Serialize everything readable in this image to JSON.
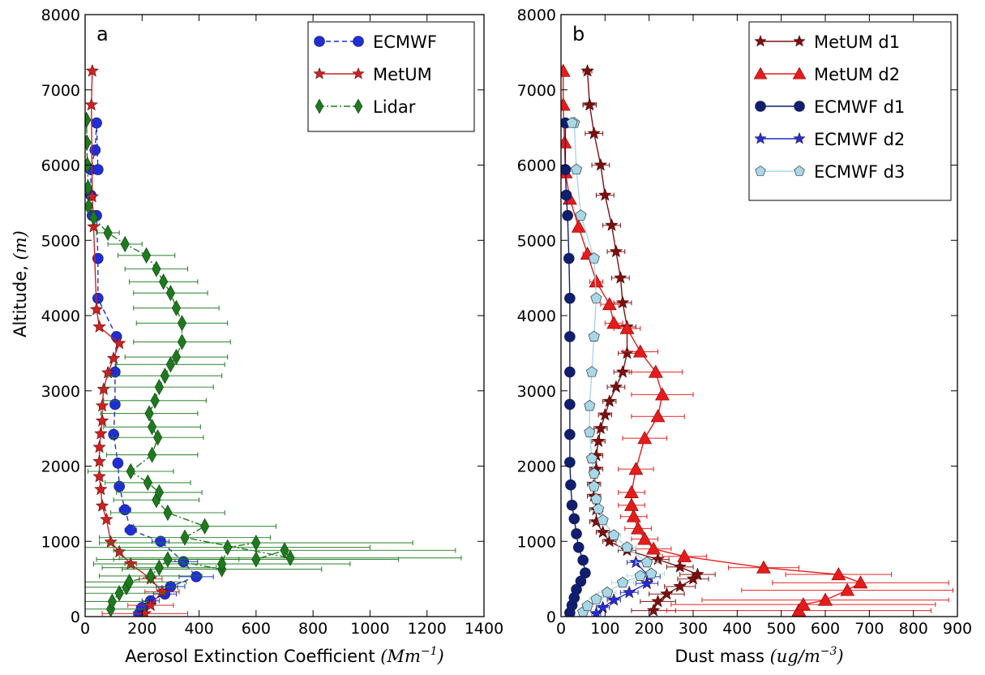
{
  "ylabel_text": "Altitude, ",
  "ylabel_unit": "(m)",
  "chart_data": [
    {
      "type": "line",
      "panel_label": "a",
      "xlabel_text": "Aerosol Extinction Coefficient ",
      "xlabel_unit": "(Mm",
      "xlabel_exp": "−1",
      "xlabel_close": ")",
      "xlim": [
        0,
        1400
      ],
      "ylim": [
        0,
        8000
      ],
      "xticks": [
        "0",
        "200",
        "400",
        "600",
        "800",
        "1000",
        "1200",
        "1400"
      ],
      "yticks": [
        "0",
        "1000",
        "2000",
        "3000",
        "4000",
        "5000",
        "6000",
        "7000",
        "8000"
      ],
      "grid": false,
      "legend": "top-right",
      "series": [
        {
          "name": "ECMWF",
          "color": "#1f2fd6",
          "marker": "circle",
          "linestyle": "dashed",
          "x": [
            190,
            200,
            230,
            280,
            300,
            390,
            345,
            265,
            160,
            140,
            120,
            115,
            100,
            105,
            105,
            110,
            45,
            45,
            40
          ],
          "y": [
            40,
            120,
            210,
            300,
            400,
            530,
            730,
            1000,
            1150,
            1420,
            1730,
            2040,
            2420,
            2820,
            3250,
            3720,
            4230,
            4760,
            5330
          ],
          "xerr": [
            20,
            20,
            30,
            40,
            50,
            60,
            50,
            30,
            20,
            20,
            15,
            15,
            15,
            15,
            15,
            15,
            10,
            10,
            10
          ]
        },
        {
          "name": "ECMWF_upper",
          "color": "#1f2fd6",
          "marker": "circle",
          "linestyle": "dashed",
          "x": [
            25,
            20,
            20,
            35,
            40,
            45
          ],
          "y": [
            5330,
            5600,
            5940,
            6200,
            6560,
            5940
          ],
          "xerr": [
            0,
            0,
            0,
            0,
            0,
            0
          ],
          "hidden_name": true
        },
        {
          "name": "MetUM",
          "color": "#cc2222",
          "marker": "star",
          "linestyle": "solid",
          "x": [
            210,
            230,
            270,
            230,
            160,
            120,
            90,
            75,
            60,
            55,
            50,
            50,
            50,
            55,
            60,
            60,
            65,
            80,
            100,
            120,
            50,
            40,
            30,
            25,
            22,
            25
          ],
          "y": [
            40,
            150,
            330,
            500,
            700,
            860,
            990,
            1290,
            1470,
            1690,
            1860,
            2060,
            2250,
            2430,
            2600,
            2800,
            3020,
            3240,
            3430,
            3630,
            3850,
            4080,
            5180,
            5580,
            6800,
            7250
          ],
          "xerr": [
            150,
            80,
            60,
            40,
            20,
            10,
            10,
            10,
            10,
            10,
            10,
            10,
            10,
            10,
            10,
            10,
            10,
            10,
            10,
            10,
            10,
            10,
            5,
            5,
            5,
            5
          ]
        },
        {
          "name": "Lidar",
          "color": "#1e7a1e",
          "marker": "diamond",
          "linestyle": "dashdot",
          "x": [
            90,
            95,
            120,
            145,
            155,
            230,
            260,
            290,
            480,
            480,
            500,
            600,
            600,
            700,
            720,
            350,
            420,
            290,
            250,
            260,
            220,
            160,
            235,
            255,
            235,
            225,
            245,
            260,
            280,
            300,
            320,
            340,
            340,
            320,
            300,
            275,
            250,
            215,
            140,
            80,
            30,
            12,
            10,
            8,
            6,
            5
          ],
          "y": [
            100,
            200,
            310,
            390,
            460,
            540,
            650,
            760,
            630,
            700,
            920,
            980,
            760,
            880,
            780,
            1050,
            1200,
            1380,
            1550,
            1650,
            1780,
            1930,
            2150,
            2380,
            2520,
            2700,
            2870,
            3050,
            3200,
            3350,
            3450,
            3650,
            3900,
            4100,
            4300,
            4450,
            4620,
            4800,
            4950,
            5100,
            5300,
            5450,
            5700,
            6000,
            6300,
            6600
          ],
          "xerr": [
            120,
            120,
            160,
            180,
            200,
            180,
            200,
            250,
            350,
            450,
            500,
            550,
            500,
            600,
            600,
            300,
            250,
            200,
            150,
            150,
            150,
            150,
            160,
            160,
            170,
            170,
            180,
            190,
            200,
            190,
            180,
            170,
            160,
            150,
            130,
            120,
            110,
            100,
            60,
            40,
            10,
            0,
            0,
            0,
            0,
            0
          ]
        }
      ]
    },
    {
      "type": "line",
      "panel_label": "b",
      "xlabel_text": "Dust mass  ",
      "xlabel_unit": "(ug/m",
      "xlabel_exp": "−3",
      "xlabel_close": ")",
      "xlim": [
        0,
        900
      ],
      "ylim": [
        0,
        8000
      ],
      "xticks": [
        "0",
        "100",
        "200",
        "300",
        "400",
        "500",
        "600",
        "700",
        "800",
        "900"
      ],
      "yticks": [
        "0",
        "1000",
        "2000",
        "3000",
        "4000",
        "5000",
        "6000",
        "7000",
        "8000"
      ],
      "grid": false,
      "legend": "top-right",
      "series": [
        {
          "name": "MetUM d1",
          "color": "#7a1010",
          "marker": "star",
          "linestyle": "solid",
          "x": [
            210,
            220,
            240,
            270,
            300,
            310,
            270,
            220,
            150,
            110,
            95,
            80,
            80,
            75,
            75,
            80,
            80,
            85,
            90,
            100,
            110,
            125,
            140,
            150,
            150,
            140,
            135,
            125,
            115,
            100,
            90,
            75,
            65
          ],
          "y": [
            80,
            200,
            300,
            400,
            500,
            560,
            660,
            760,
            880,
            1000,
            1120,
            1260,
            1420,
            1600,
            1760,
            1960,
            2140,
            2330,
            2500,
            2680,
            2860,
            3050,
            3250,
            3500,
            3850,
            4170,
            4500,
            4850,
            5200,
            5600,
            6000,
            6420,
            6800
          ],
          "xerr": [
            50,
            40,
            40,
            35,
            35,
            40,
            30,
            25,
            20,
            15,
            15,
            15,
            15,
            15,
            15,
            15,
            15,
            15,
            15,
            15,
            15,
            20,
            20,
            20,
            20,
            20,
            20,
            20,
            20,
            20,
            20,
            20,
            15
          ]
        },
        {
          "name": "MetUM d1_top",
          "color": "#7a1010",
          "marker": "star",
          "linestyle": "solid",
          "x": [
            65,
            60
          ],
          "y": [
            6800,
            7250
          ],
          "xerr": [
            15,
            10
          ],
          "hidden_name": true
        },
        {
          "name": "MetUM d2",
          "color": "#e51c1c",
          "marker": "triangle",
          "linestyle": "solid",
          "x": [
            540,
            550,
            600,
            650,
            680,
            630,
            460,
            280,
            210,
            190,
            175,
            165,
            160,
            160,
            170,
            190,
            220,
            230,
            215,
            180,
            150,
            120,
            110,
            80,
            60,
            40,
            20,
            10,
            8,
            5,
            5
          ],
          "y": [
            80,
            160,
            220,
            350,
            450,
            560,
            650,
            800,
            900,
            1030,
            1170,
            1330,
            1480,
            1650,
            1960,
            2370,
            2660,
            2950,
            3250,
            3520,
            3830,
            3900,
            4150,
            4450,
            4820,
            5180,
            5550,
            5900,
            6300,
            6800,
            7250
          ],
          "xerr": [
            300,
            300,
            280,
            240,
            200,
            120,
            80,
            50,
            40,
            30,
            30,
            30,
            30,
            30,
            40,
            50,
            60,
            70,
            60,
            40,
            30,
            20,
            20,
            15,
            10,
            5,
            5,
            3,
            0,
            0,
            0
          ]
        },
        {
          "name": "ECMWF d1",
          "color": "#101e6e",
          "marker": "circle",
          "linestyle": "solid",
          "x": [
            20,
            25,
            30,
            35,
            45,
            55,
            50,
            40,
            35,
            30,
            25,
            22,
            20,
            20,
            20,
            20,
            20,
            20,
            18,
            15,
            12,
            10,
            10
          ],
          "y": [
            50,
            150,
            250,
            360,
            470,
            580,
            750,
            920,
            1100,
            1300,
            1480,
            1750,
            2050,
            2420,
            2820,
            3250,
            3720,
            4230,
            4760,
            5330,
            5600,
            5940,
            6560
          ],
          "xerr": [
            5,
            5,
            5,
            5,
            5,
            5,
            5,
            5,
            5,
            5,
            5,
            5,
            5,
            5,
            5,
            5,
            5,
            5,
            5,
            0,
            0,
            0,
            0
          ]
        },
        {
          "name": "ECMWF d2",
          "color": "#1f2fd6",
          "marker": "star",
          "linestyle": "solid",
          "x": [
            80,
            95,
            120,
            155,
            195,
            200,
            170
          ],
          "y": [
            40,
            120,
            220,
            320,
            440,
            530,
            720
          ],
          "xerr": [
            10,
            15,
            15,
            20,
            25,
            25,
            20
          ]
        },
        {
          "name": "ECMWF d3",
          "color": "#a8d8e8",
          "marker": "pentagon",
          "linestyle": "solid",
          "x": [
            50,
            60,
            80,
            105,
            140,
            180,
            205,
            195,
            150,
            120,
            95,
            85,
            80,
            75,
            75,
            70,
            65,
            65,
            70,
            75,
            80,
            75,
            45,
            35,
            30,
            25
          ],
          "y": [
            60,
            140,
            230,
            320,
            450,
            540,
            570,
            720,
            920,
            1080,
            1280,
            1430,
            1560,
            1730,
            1900,
            2100,
            2450,
            2800,
            3250,
            3720,
            4230,
            4760,
            5330,
            5940,
            6560,
            6560
          ],
          "xerr": [
            10,
            10,
            15,
            20,
            25,
            30,
            30,
            25,
            20,
            15,
            10,
            10,
            10,
            10,
            10,
            10,
            10,
            10,
            10,
            10,
            10,
            10,
            10,
            10,
            10,
            0
          ]
        }
      ]
    }
  ]
}
